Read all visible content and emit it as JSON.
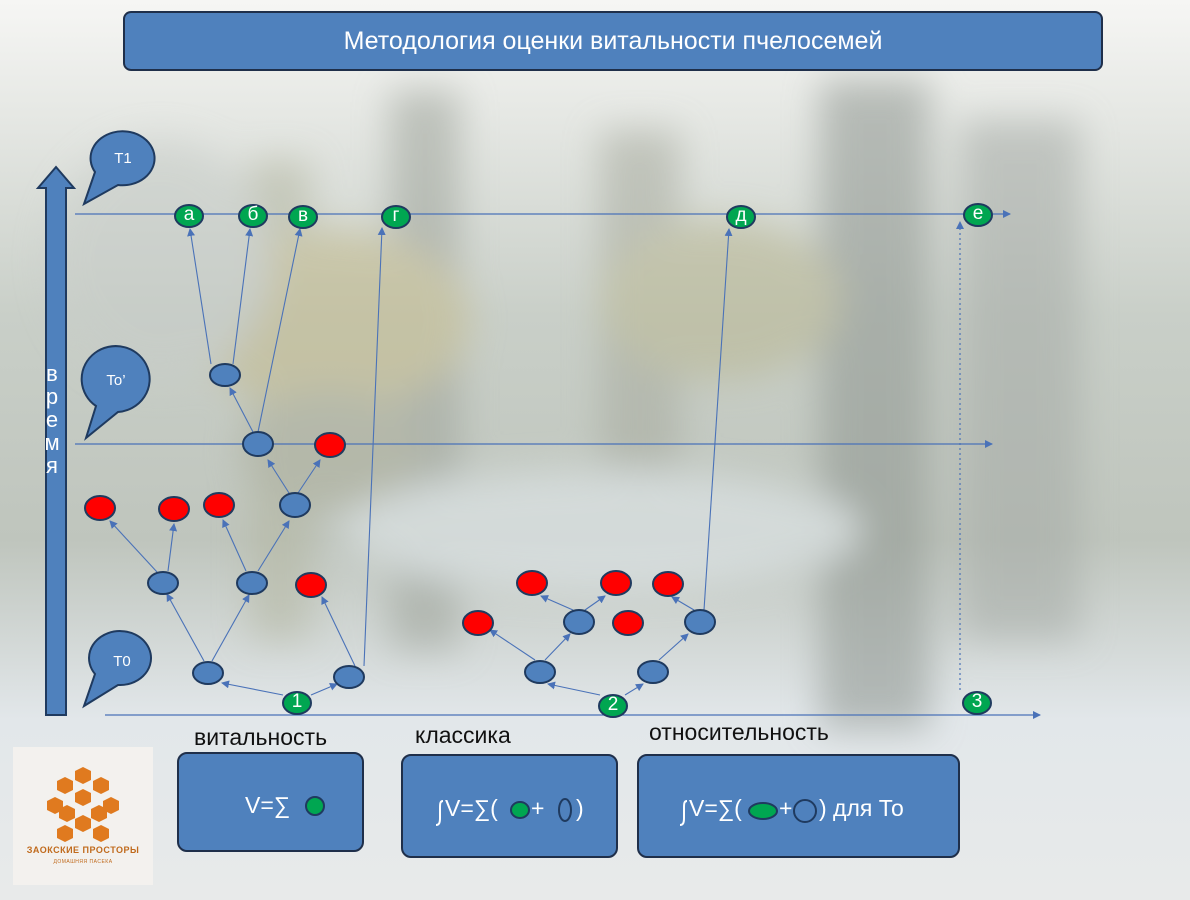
{
  "title": "Методология оценки витальности пчелосемей",
  "time_axis_label": "время",
  "callouts": {
    "t1": "T1",
    "to_prime": "To’",
    "t0": "T0"
  },
  "top_nodes": [
    "а",
    "б",
    "в",
    "г",
    "д",
    "е"
  ],
  "root_nodes": [
    "1",
    "2",
    "3"
  ],
  "captions": {
    "vitality": "витальность",
    "classic": "классика",
    "relativity": "относительность"
  },
  "formulas": {
    "vitality": "V=∑",
    "classic_prefix": "V=∑(",
    "classic_plus": "+",
    "classic_close": ")",
    "relativity_prefix": "V=∑(",
    "relativity_plus": "+",
    "relativity_suffix": ") для То"
  },
  "logo": {
    "title": "ЗАОКСКИЕ ПРОСТОРЫ",
    "subtitle": "ДОМАШНЯЯ ПАСЕКА"
  },
  "colors": {
    "node_blue": "#4f81bd",
    "node_red": "#ff0000",
    "node_green": "#00a651",
    "outline": "#1f3a5f",
    "line": "#4a72b8"
  }
}
